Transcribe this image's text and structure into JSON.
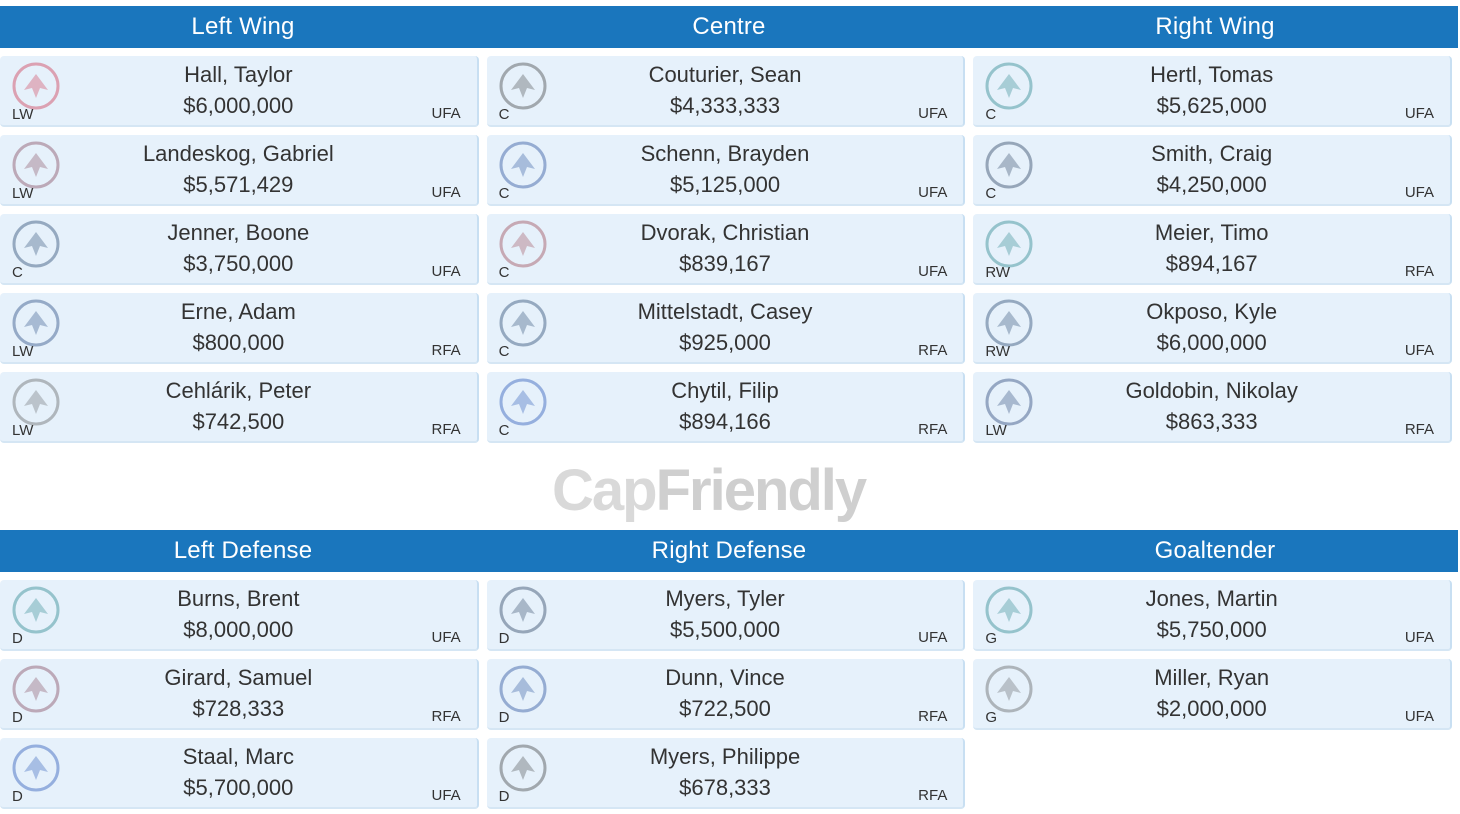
{
  "top_section": {
    "headers": [
      "Left Wing",
      "Centre",
      "Right Wing"
    ],
    "columns": [
      [
        {
          "name": "Hall, Taylor",
          "cap": "$6,000,000",
          "pos": "LW",
          "status": "UFA",
          "team_icon": "devils-logo"
        },
        {
          "name": "Landeskog, Gabriel",
          "cap": "$5,571,429",
          "pos": "LW",
          "status": "UFA",
          "team_icon": "avalanche-logo"
        },
        {
          "name": "Jenner, Boone",
          "cap": "$3,750,000",
          "pos": "C",
          "status": "UFA",
          "team_icon": "blue-jackets-logo"
        },
        {
          "name": "Erne, Adam",
          "cap": "$800,000",
          "pos": "LW",
          "status": "RFA",
          "team_icon": "lightning-logo"
        },
        {
          "name": "Cehlárik, Peter",
          "cap": "$742,500",
          "pos": "LW",
          "status": "RFA",
          "team_icon": "bruins-logo"
        }
      ],
      [
        {
          "name": "Couturier, Sean",
          "cap": "$4,333,333",
          "pos": "C",
          "status": "UFA",
          "team_icon": "flyers-logo"
        },
        {
          "name": "Schenn, Brayden",
          "cap": "$5,125,000",
          "pos": "C",
          "status": "UFA",
          "team_icon": "blues-logo"
        },
        {
          "name": "Dvorak, Christian",
          "cap": "$839,167",
          "pos": "C",
          "status": "UFA",
          "team_icon": "coyotes-logo"
        },
        {
          "name": "Mittelstadt, Casey",
          "cap": "$925,000",
          "pos": "C",
          "status": "RFA",
          "team_icon": "sabres-logo"
        },
        {
          "name": "Chytil, Filip",
          "cap": "$894,166",
          "pos": "C",
          "status": "RFA",
          "team_icon": "rangers-logo"
        }
      ],
      [
        {
          "name": "Hertl, Tomas",
          "cap": "$5,625,000",
          "pos": "C",
          "status": "UFA",
          "team_icon": "sharks-logo"
        },
        {
          "name": "Smith, Craig",
          "cap": "$4,250,000",
          "pos": "C",
          "status": "UFA",
          "team_icon": "predators-logo"
        },
        {
          "name": "Meier, Timo",
          "cap": "$894,167",
          "pos": "RW",
          "status": "RFA",
          "team_icon": "sharks-logo"
        },
        {
          "name": "Okposo, Kyle",
          "cap": "$6,000,000",
          "pos": "RW",
          "status": "UFA",
          "team_icon": "sabres-logo"
        },
        {
          "name": "Goldobin, Nikolay",
          "cap": "$863,333",
          "pos": "LW",
          "status": "RFA",
          "team_icon": "canucks-logo"
        }
      ]
    ]
  },
  "bottom_section": {
    "headers": [
      "Left Defense",
      "Right Defense",
      "Goaltender"
    ],
    "columns": [
      [
        {
          "name": "Burns, Brent",
          "cap": "$8,000,000",
          "pos": "D",
          "status": "UFA",
          "team_icon": "sharks-logo"
        },
        {
          "name": "Girard, Samuel",
          "cap": "$728,333",
          "pos": "D",
          "status": "RFA",
          "team_icon": "avalanche-logo"
        },
        {
          "name": "Staal, Marc",
          "cap": "$5,700,000",
          "pos": "D",
          "status": "UFA",
          "team_icon": "rangers-logo"
        }
      ],
      [
        {
          "name": "Myers, Tyler",
          "cap": "$5,500,000",
          "pos": "D",
          "status": "UFA",
          "team_icon": "jets-logo"
        },
        {
          "name": "Dunn, Vince",
          "cap": "$722,500",
          "pos": "D",
          "status": "RFA",
          "team_icon": "blues-logo"
        },
        {
          "name": "Myers, Philippe",
          "cap": "$678,333",
          "pos": "D",
          "status": "RFA",
          "team_icon": "flyers-logo"
        }
      ],
      [
        {
          "name": "Jones, Martin",
          "cap": "$5,750,000",
          "pos": "G",
          "status": "UFA",
          "team_icon": "sharks-logo"
        },
        {
          "name": "Miller, Ryan",
          "cap": "$2,000,000",
          "pos": "G",
          "status": "UFA",
          "team_icon": "ducks-logo"
        }
      ]
    ]
  },
  "watermark": {
    "part1": "Cap",
    "part2": "Friendly"
  },
  "colors": {
    "header_bg": "#1a76bd",
    "card_bg": "#e6f1fb"
  }
}
